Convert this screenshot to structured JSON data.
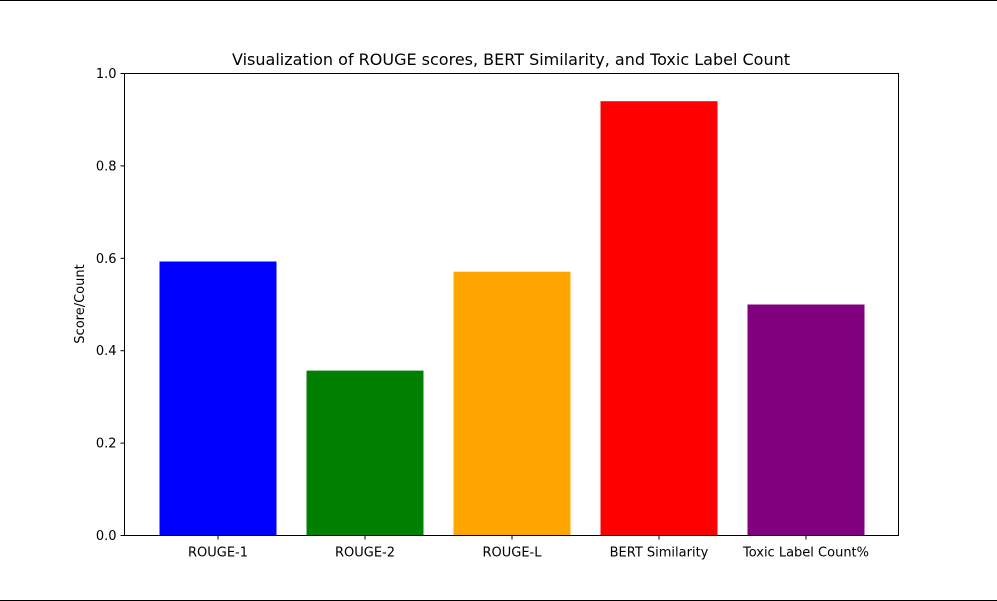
{
  "chart_data": {
    "type": "bar",
    "title": "Visualization of ROUGE scores, BERT Similarity, and Toxic Label Count",
    "xlabel": "",
    "ylabel": "Score/Count",
    "categories": [
      "ROUGE-1",
      "ROUGE-2",
      "ROUGE-L",
      "BERT Similarity",
      "Toxic Label Count%"
    ],
    "values": [
      0.593,
      0.357,
      0.571,
      0.94,
      0.5
    ],
    "colors": [
      "#0000ff",
      "#008000",
      "#ffa500",
      "#ff0000",
      "#800080"
    ],
    "ylim": [
      0,
      1.0
    ],
    "yticks": [
      "0.0",
      "0.2",
      "0.4",
      "0.6",
      "0.8",
      "1.0"
    ],
    "grid": false,
    "legend": "none"
  }
}
